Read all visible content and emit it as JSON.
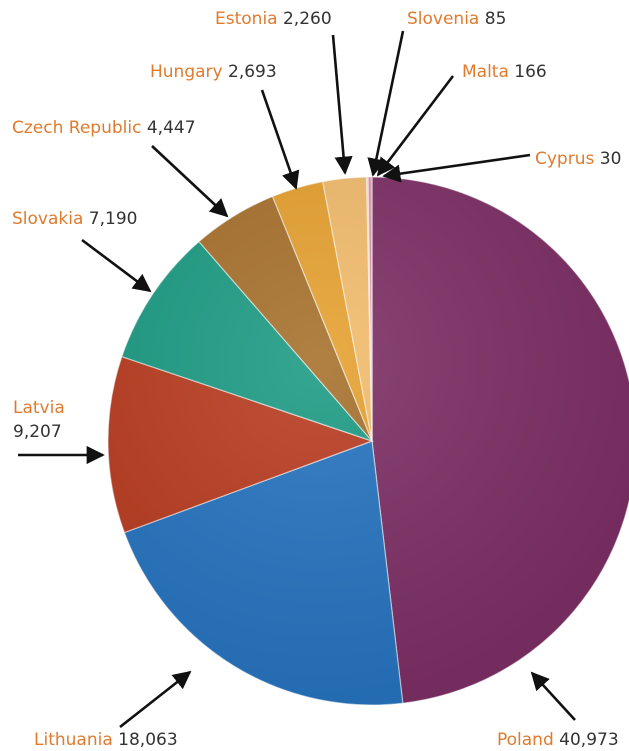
{
  "chart_data": {
    "type": "pie",
    "title": "",
    "start_angle_deg": 0,
    "direction": "clockwise",
    "label_name_color": "#e07b2e",
    "label_value_color": "#333333",
    "slices": [
      {
        "label": "Poland",
        "value": 40973,
        "value_text": "40,973",
        "color": "#7b2d63"
      },
      {
        "label": "Lithuania",
        "value": 18063,
        "value_text": "18,063",
        "color": "#2472bf"
      },
      {
        "label": "Latvia",
        "value": 9207,
        "value_text": "9,207",
        "color": "#b83a1e"
      },
      {
        "label": "Slovakia",
        "value": 7190,
        "value_text": "7,190",
        "color": "#1a9a82"
      },
      {
        "label": "Czech Republic",
        "value": 4447,
        "value_text": "4,447",
        "color": "#a66f2a"
      },
      {
        "label": "Hungary",
        "value": 2693,
        "value_text": "2,693",
        "color": "#e6a02e"
      },
      {
        "label": "Estonia",
        "value": 2260,
        "value_text": "2,260",
        "color": "#f2bb6b"
      },
      {
        "label": "Slovenia",
        "value": 85,
        "value_text": "85",
        "color": "#f0d9a8"
      },
      {
        "label": "Malta",
        "value": 166,
        "value_text": "166",
        "color": "#e58aa8"
      },
      {
        "label": "Cyprus",
        "value": 30,
        "value_text": "30",
        "color": "#d9336a"
      }
    ]
  }
}
